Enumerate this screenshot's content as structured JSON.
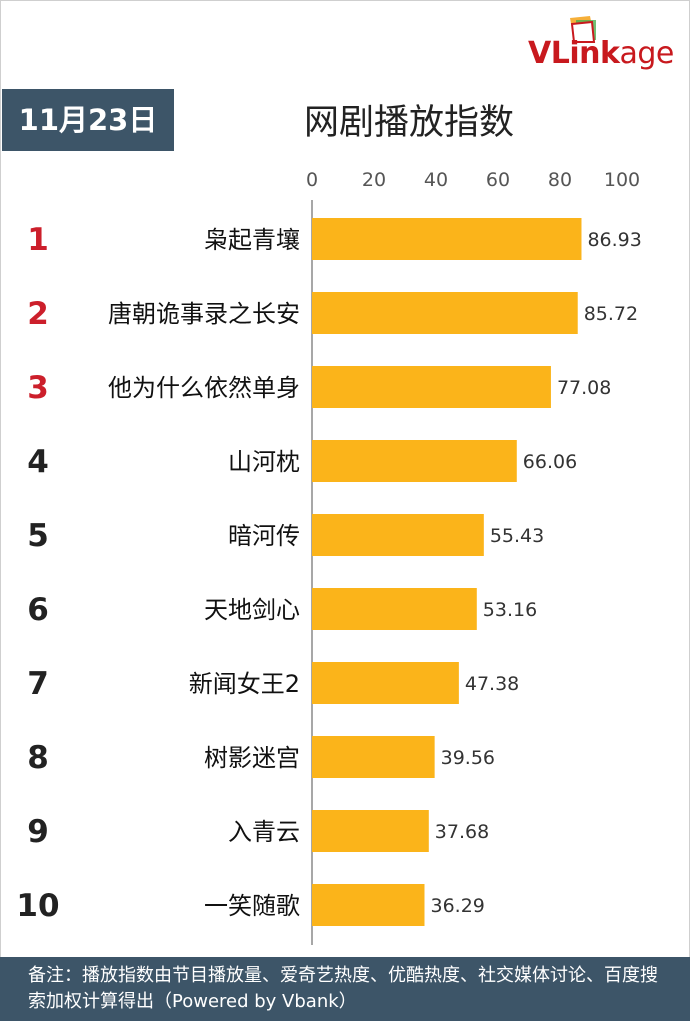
{
  "logo": {
    "brand": "VLinkage"
  },
  "header": {
    "date": "11月23日",
    "title": "网剧播放指数"
  },
  "colors": {
    "bar": "#fbb41a",
    "rank_top": "#cc1f2b",
    "rank": "#222222",
    "banner": "#3d5568"
  },
  "chart_data": {
    "type": "bar",
    "orientation": "horizontal",
    "title": "网剧播放指数",
    "xlim": [
      0,
      100
    ],
    "xticks": [
      0,
      20,
      40,
      60,
      80,
      100
    ],
    "ranks": [
      "1",
      "2",
      "3",
      "4",
      "5",
      "6",
      "7",
      "8",
      "9",
      "10"
    ],
    "categories": [
      "枭起青壤",
      "唐朝诡事录之长安",
      "他为什么依然单身",
      "山河枕",
      "暗河传",
      "天地剑心",
      "新闻女王2",
      "树影迷宫",
      "入青云",
      "一笑随歌"
    ],
    "values": [
      86.93,
      85.72,
      77.08,
      66.06,
      55.43,
      53.16,
      47.38,
      39.56,
      37.68,
      36.29
    ],
    "value_labels": [
      "86.93",
      "85.72",
      "77.08",
      "66.06",
      "55.43",
      "53.16",
      "47.38",
      "39.56",
      "37.68",
      "36.29"
    ],
    "grid": false,
    "legend": "none"
  },
  "footer": {
    "note": "备注：播放指数由节目播放量、爱奇艺热度、优酷热度、社交媒体讨论、百度搜索加权计算得出（Powered by Vbank）"
  }
}
